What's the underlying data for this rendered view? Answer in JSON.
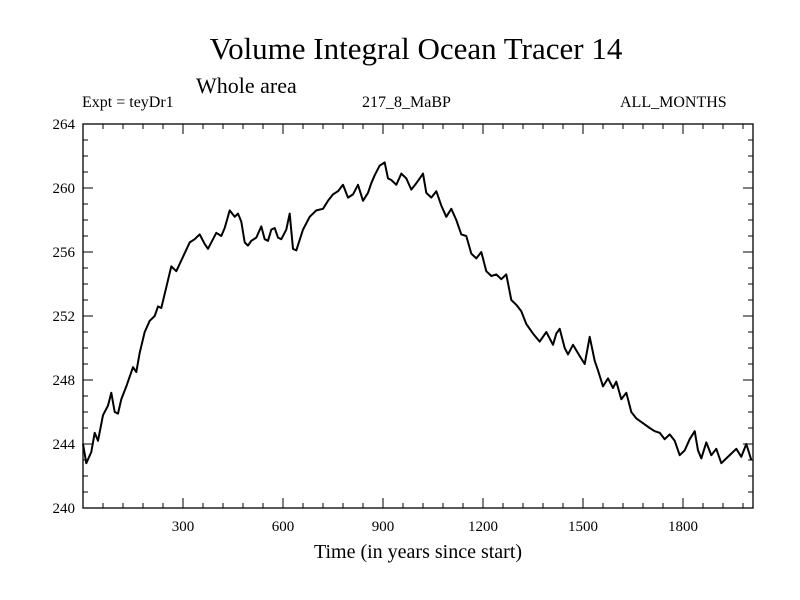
{
  "header": {
    "title": "Volume Integral Ocean Tracer 14",
    "subtitle": "Whole area",
    "experiment": "Expt = teyDr1",
    "run": "217_8_MaBP",
    "months": "ALL_MONTHS"
  },
  "chart_data": {
    "type": "line",
    "title": "Volume Integral Ocean Tracer 14",
    "subtitle": "Whole area",
    "xlabel": "Time (in years since start)",
    "ylabel": "",
    "xlim": [
      0,
      2010
    ],
    "ylim": [
      240,
      264
    ],
    "x_ticks": [
      300,
      600,
      900,
      1200,
      1500,
      1800
    ],
    "x_tick_labels": [
      "300",
      "600",
      "900",
      "1200",
      "1500",
      "1800"
    ],
    "y_ticks": [
      240,
      244,
      248,
      252,
      256,
      260,
      264
    ],
    "y_tick_labels": [
      "240",
      "244",
      "248",
      "252",
      "256",
      "260",
      "264"
    ],
    "x_minor_step": 60,
    "y_minor_step": 1,
    "grid": false,
    "series": [
      {
        "name": "Ocean Tracer 14",
        "x": [
          0,
          10,
          25,
          35,
          45,
          60,
          75,
          85,
          95,
          105,
          115,
          130,
          150,
          160,
          170,
          185,
          200,
          215,
          225,
          235,
          250,
          265,
          280,
          300,
          320,
          335,
          350,
          365,
          375,
          390,
          400,
          415,
          425,
          440,
          455,
          465,
          475,
          485,
          495,
          505,
          520,
          535,
          545,
          555,
          565,
          575,
          585,
          595,
          610,
          620,
          630,
          640,
          660,
          680,
          700,
          720,
          735,
          750,
          765,
          780,
          795,
          810,
          825,
          840,
          855,
          865,
          875,
          890,
          905,
          915,
          925,
          940,
          955,
          970,
          985,
          1000,
          1010,
          1020,
          1030,
          1045,
          1060,
          1075,
          1090,
          1105,
          1120,
          1135,
          1150,
          1165,
          1180,
          1195,
          1210,
          1225,
          1240,
          1255,
          1270,
          1285,
          1300,
          1315,
          1330,
          1350,
          1370,
          1390,
          1410,
          1420,
          1430,
          1445,
          1455,
          1470,
          1490,
          1505,
          1520,
          1535,
          1545,
          1560,
          1575,
          1590,
          1600,
          1615,
          1630,
          1645,
          1660,
          1680,
          1700,
          1715,
          1730,
          1745,
          1760,
          1775,
          1790,
          1805,
          1820,
          1835,
          1845,
          1855,
          1870,
          1885,
          1900,
          1915,
          1930,
          1945,
          1960,
          1975,
          1990,
          2005
        ],
        "y": [
          244.0,
          242.8,
          243.5,
          244.7,
          244.2,
          245.8,
          246.4,
          247.2,
          246.0,
          245.9,
          246.8,
          247.6,
          248.8,
          248.5,
          249.7,
          251.0,
          251.7,
          252.0,
          252.6,
          252.5,
          253.8,
          255.1,
          254.8,
          255.7,
          256.6,
          256.8,
          257.1,
          256.5,
          256.2,
          256.8,
          257.2,
          257.0,
          257.5,
          258.6,
          258.2,
          258.4,
          257.9,
          256.6,
          256.4,
          256.7,
          256.9,
          257.6,
          256.8,
          256.7,
          257.4,
          257.5,
          256.9,
          256.8,
          257.4,
          258.4,
          256.2,
          256.1,
          257.4,
          258.2,
          258.6,
          258.7,
          259.2,
          259.6,
          259.8,
          260.2,
          259.4,
          259.6,
          260.2,
          259.2,
          259.7,
          260.3,
          260.8,
          261.4,
          261.6,
          260.6,
          260.5,
          260.2,
          260.9,
          260.6,
          259.9,
          260.3,
          260.6,
          260.9,
          259.7,
          259.4,
          259.8,
          258.9,
          258.2,
          258.7,
          258.0,
          257.1,
          257.0,
          255.9,
          255.6,
          256.0,
          254.8,
          254.5,
          254.6,
          254.3,
          254.6,
          253.0,
          252.7,
          252.3,
          251.5,
          250.9,
          250.4,
          251.0,
          250.2,
          250.9,
          251.2,
          250.0,
          249.6,
          250.2,
          249.5,
          249.0,
          250.7,
          249.2,
          248.6,
          247.6,
          248.1,
          247.5,
          247.9,
          246.8,
          247.2,
          246.0,
          245.6,
          245.3,
          245.0,
          244.8,
          244.7,
          244.3,
          244.6,
          244.2,
          243.3,
          243.6,
          244.3,
          244.8,
          243.6,
          243.1,
          244.1,
          243.3,
          243.7,
          242.8,
          243.1,
          243.4,
          243.7,
          243.2,
          244.0,
          243.0
        ]
      }
    ]
  }
}
